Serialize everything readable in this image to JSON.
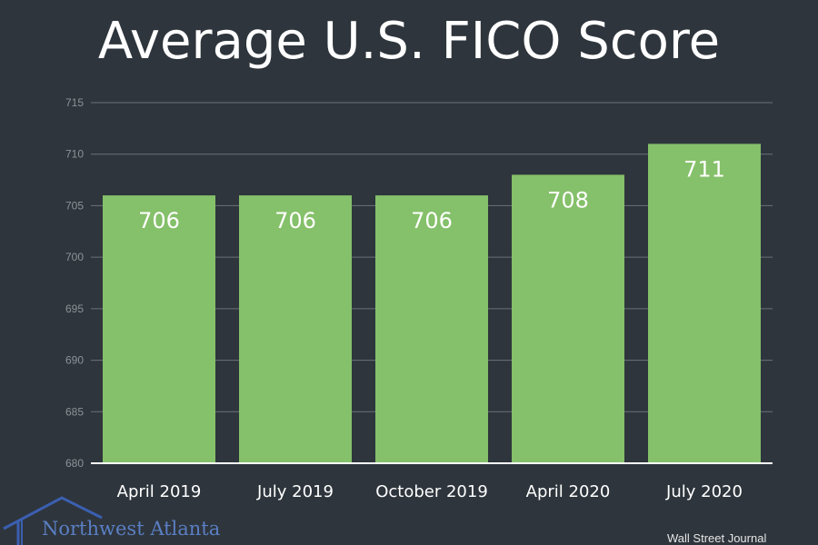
{
  "page": {
    "title": "Average U.S. FICO Score",
    "source": "Wall Street Journal",
    "logo_text": "Northwest Atlanta"
  },
  "colors": {
    "background": "#2e353c",
    "bar": "#85c06a",
    "gridline": "#6b7278",
    "axis": "#ffffff",
    "tick_label": "#8d9398",
    "category_label": "#ffffff",
    "data_label": "#ffffff",
    "logo": "#3b5fb0"
  },
  "chart_data": {
    "type": "bar",
    "title": "Average U.S. FICO Score",
    "xlabel": "",
    "ylabel": "",
    "categories": [
      "April 2019",
      "July 2019",
      "October 2019",
      "April 2020",
      "July 2020"
    ],
    "values": [
      706,
      706,
      706,
      708,
      711
    ],
    "data_labels": [
      "706",
      "706",
      "706",
      "708",
      "711"
    ],
    "ylim": [
      680,
      715
    ],
    "yticks": [
      680,
      685,
      690,
      695,
      700,
      705,
      710,
      715
    ],
    "grid": true,
    "legend": "none"
  }
}
